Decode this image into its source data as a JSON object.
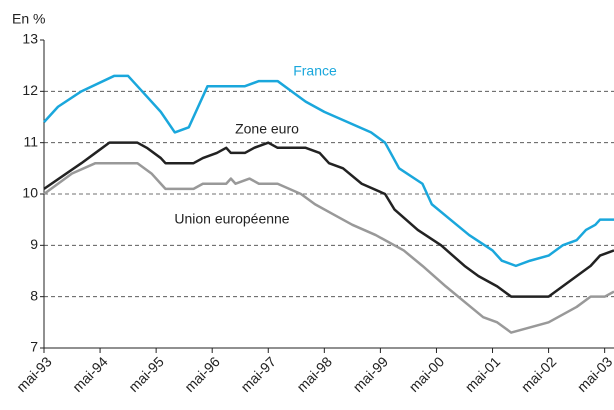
{
  "chart_data": {
    "type": "line",
    "ylabel": "En %",
    "xlim": [
      0,
      122
    ],
    "ylim": [
      7,
      13
    ],
    "yticks": [
      7,
      8,
      9,
      10,
      11,
      12,
      13
    ],
    "grid": true,
    "xticks": [
      {
        "value": 0,
        "label": "mai-93"
      },
      {
        "value": 12,
        "label": "mai-94"
      },
      {
        "value": 24,
        "label": "mai-95"
      },
      {
        "value": 36,
        "label": "mai-96"
      },
      {
        "value": 48,
        "label": "mai-97"
      },
      {
        "value": 60,
        "label": "mai-98"
      },
      {
        "value": 72,
        "label": "mai-99"
      },
      {
        "value": 84,
        "label": "mai-00"
      },
      {
        "value": 96,
        "label": "mai-01"
      },
      {
        "value": 108,
        "label": "mai-02"
      },
      {
        "value": 120,
        "label": "mai-03"
      }
    ],
    "series": [
      {
        "name": "France",
        "color": "#1aa7dc",
        "x": [
          0,
          3,
          8,
          15,
          18,
          22,
          25,
          28,
          31,
          35,
          43,
          46,
          50,
          53,
          56,
          60,
          65,
          70,
          73,
          76,
          81,
          83,
          87,
          91,
          96,
          98,
          101,
          104,
          108,
          111,
          114,
          116,
          118,
          119,
          122
        ],
        "values": [
          11.4,
          11.7,
          12.0,
          12.3,
          12.3,
          11.9,
          11.6,
          11.2,
          11.3,
          12.1,
          12.1,
          12.2,
          12.2,
          12.0,
          11.8,
          11.6,
          11.4,
          11.2,
          11.0,
          10.5,
          10.2,
          9.8,
          9.5,
          9.2,
          8.9,
          8.7,
          8.6,
          8.7,
          8.8,
          9.0,
          9.1,
          9.3,
          9.4,
          9.5,
          9.5
        ]
      },
      {
        "name": "Zone euro",
        "color": "#222222",
        "x": [
          0,
          8,
          11,
          14,
          20,
          22,
          25,
          26,
          32,
          34,
          37,
          39,
          40,
          43,
          45,
          48,
          50,
          56,
          59,
          61,
          64,
          68,
          73,
          75,
          80,
          85,
          90,
          93,
          97,
          100,
          108,
          111,
          114,
          117,
          119,
          122
        ],
        "values": [
          10.1,
          10.6,
          10.8,
          11.0,
          11.0,
          10.9,
          10.7,
          10.6,
          10.6,
          10.7,
          10.8,
          10.9,
          10.8,
          10.8,
          10.9,
          11.0,
          10.9,
          10.9,
          10.8,
          10.6,
          10.5,
          10.2,
          10.0,
          9.7,
          9.3,
          9.0,
          8.6,
          8.4,
          8.2,
          8.0,
          8.0,
          8.2,
          8.4,
          8.6,
          8.8,
          8.9
        ]
      },
      {
        "name": "Union européenne",
        "color": "#999999",
        "x": [
          0,
          6,
          11,
          20,
          23,
          25,
          26,
          32,
          34,
          39,
          40,
          41,
          44,
          46,
          50,
          55,
          58,
          62,
          66,
          71,
          77,
          81,
          86,
          90,
          94,
          97,
          100,
          104,
          108,
          112,
          114,
          117,
          120,
          122
        ],
        "values": [
          10.0,
          10.4,
          10.6,
          10.6,
          10.4,
          10.2,
          10.1,
          10.1,
          10.2,
          10.2,
          10.3,
          10.2,
          10.3,
          10.2,
          10.2,
          10.0,
          9.8,
          9.6,
          9.4,
          9.2,
          8.9,
          8.6,
          8.2,
          7.9,
          7.6,
          7.5,
          7.3,
          7.4,
          7.5,
          7.7,
          7.8,
          8.0,
          8.0,
          8.1
        ]
      }
    ]
  }
}
